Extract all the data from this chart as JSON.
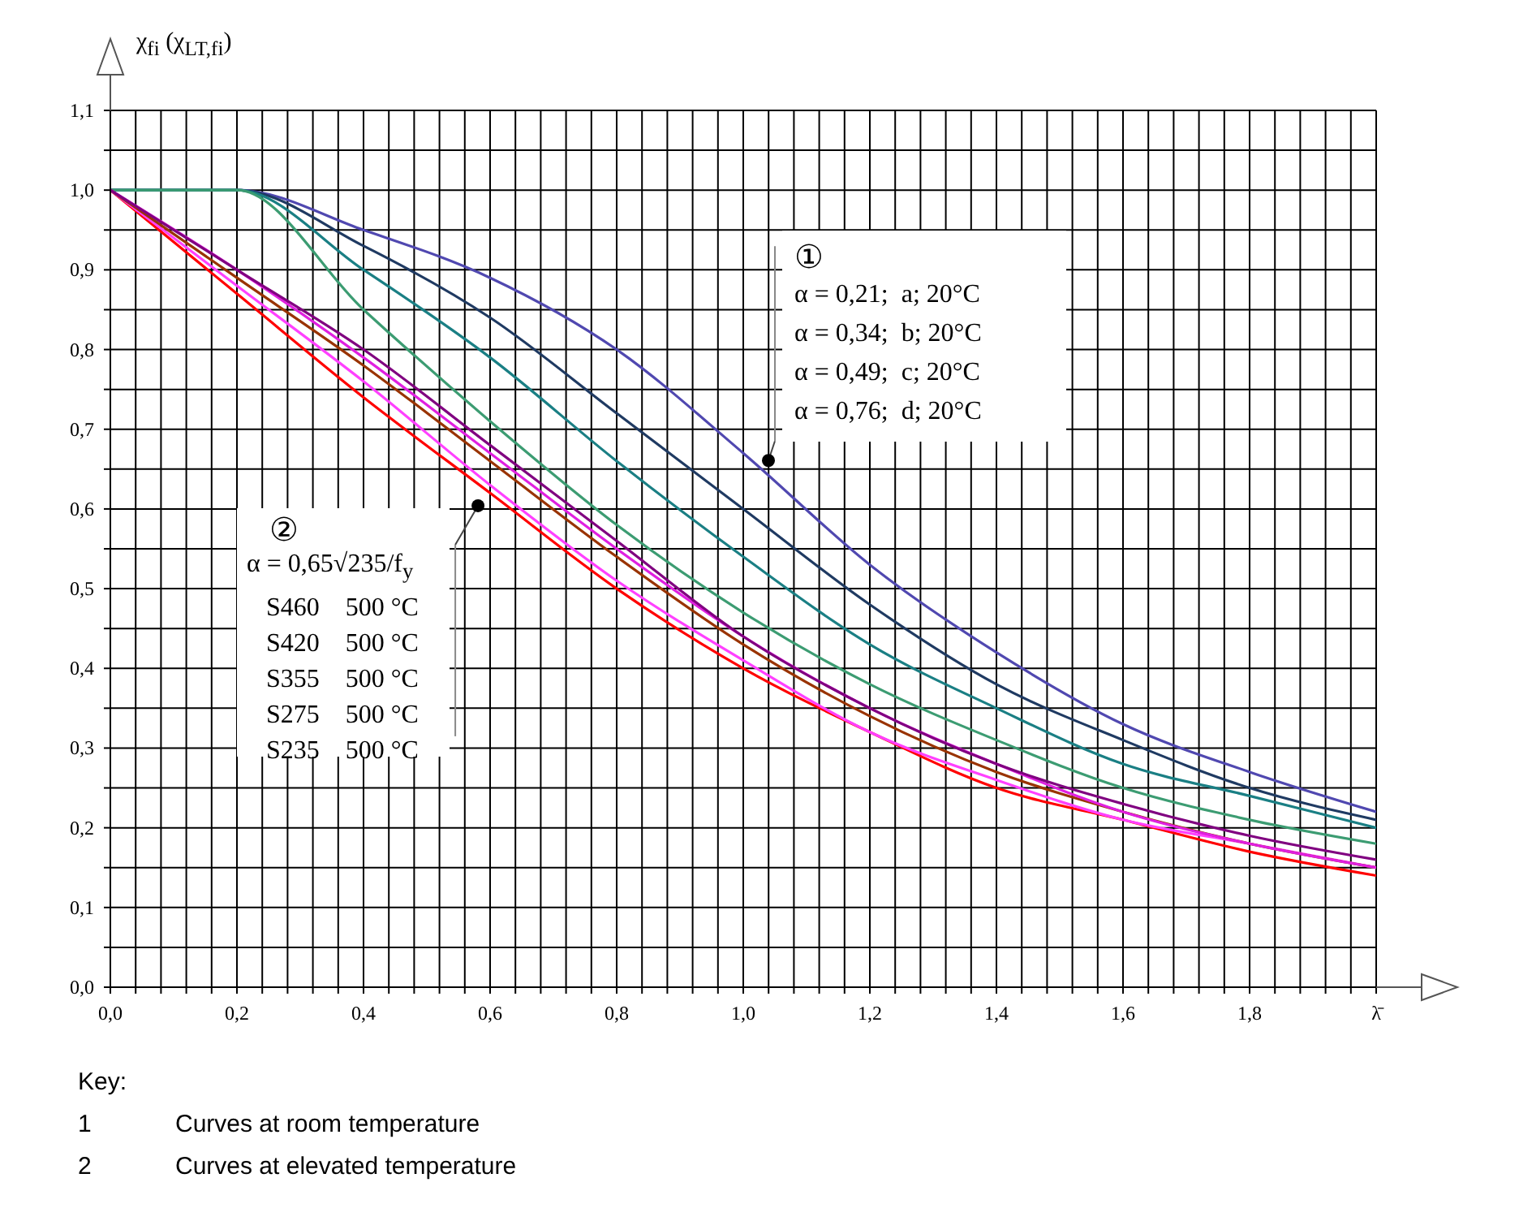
{
  "chart_data": {
    "type": "line",
    "ylabel": "χ$_{fi}$ (χ$_{LT,fi}$)",
    "x": [
      0,
      0.2,
      0.4,
      0.6,
      0.8,
      1.0,
      1.2,
      1.4,
      1.6,
      1.8,
      2.0
    ],
    "series": [
      {
        "color": "#5048b0",
        "values": [
          1,
          1,
          0.95,
          0.89,
          0.8,
          0.67,
          0.53,
          0.42,
          0.33,
          0.27,
          0.22
        ]
      },
      {
        "color": "#1f3a62",
        "values": [
          1,
          1,
          0.93,
          0.84,
          0.72,
          0.6,
          0.48,
          0.38,
          0.31,
          0.25,
          0.21
        ]
      },
      {
        "color": "#1a7f84",
        "values": [
          1,
          1,
          0.9,
          0.79,
          0.66,
          0.54,
          0.43,
          0.35,
          0.28,
          0.24,
          0.2
        ]
      },
      {
        "color": "#3c9c72",
        "values": [
          1,
          1,
          0.85,
          0.71,
          0.58,
          0.47,
          0.38,
          0.31,
          0.25,
          0.21,
          0.18
        ]
      },
      {
        "color": "#ff0000",
        "values": [
          1,
          0.87,
          0.74,
          0.62,
          0.5,
          0.4,
          0.32,
          0.25,
          0.21,
          0.17,
          0.14
        ]
      },
      {
        "color": "#ff40ff",
        "values": [
          1,
          0.88,
          0.76,
          0.63,
          0.51,
          0.41,
          0.32,
          0.26,
          0.21,
          0.18,
          0.15
        ]
      },
      {
        "color": "#993300",
        "values": [
          1,
          0.89,
          0.78,
          0.66,
          0.54,
          0.43,
          0.34,
          0.27,
          0.22,
          0.18,
          0.15
        ]
      },
      {
        "color": "#e020e0",
        "values": [
          1,
          0.9,
          0.79,
          0.67,
          0.55,
          0.44,
          0.35,
          0.28,
          0.22,
          0.18,
          0.15
        ]
      },
      {
        "color": "#800080",
        "values": [
          1,
          0.9,
          0.8,
          0.68,
          0.56,
          0.44,
          0.35,
          0.28,
          0.23,
          0.19,
          0.16
        ]
      }
    ],
    "xlim": [
      0,
      2
    ],
    "xticks": [
      {
        "value": 0,
        "label": "0,0"
      },
      {
        "value": 0.04,
        "label": null
      },
      {
        "value": 0.08,
        "label": null
      },
      {
        "value": 0.12,
        "label": null
      },
      {
        "value": 0.16,
        "label": null
      },
      {
        "value": 0.2,
        "label": "0,2"
      },
      {
        "value": 0.24,
        "label": null
      },
      {
        "value": 0.28,
        "label": null
      },
      {
        "value": 0.32,
        "label": null
      },
      {
        "value": 0.36,
        "label": null
      },
      {
        "value": 0.4,
        "label": "0,4"
      },
      {
        "value": 0.44,
        "label": null
      },
      {
        "value": 0.48,
        "label": null
      },
      {
        "value": 0.52,
        "label": null
      },
      {
        "value": 0.56,
        "label": null
      },
      {
        "value": 0.6,
        "label": "0,6"
      },
      {
        "value": 0.64,
        "label": null
      },
      {
        "value": 0.68,
        "label": null
      },
      {
        "value": 0.72,
        "label": null
      },
      {
        "value": 0.76,
        "label": null
      },
      {
        "value": 0.8,
        "label": "0,8"
      },
      {
        "value": 0.84,
        "label": null
      },
      {
        "value": 0.88,
        "label": null
      },
      {
        "value": 0.92,
        "label": null
      },
      {
        "value": 0.96,
        "label": null
      },
      {
        "value": 1.0,
        "label": "1,0"
      },
      {
        "value": 1.04,
        "label": null
      },
      {
        "value": 1.08,
        "label": null
      },
      {
        "value": 1.12,
        "label": null
      },
      {
        "value": 1.16,
        "label": null
      },
      {
        "value": 1.2,
        "label": "1,2"
      },
      {
        "value": 1.24,
        "label": null
      },
      {
        "value": 1.28,
        "label": null
      },
      {
        "value": 1.32,
        "label": null
      },
      {
        "value": 1.36,
        "label": null
      },
      {
        "value": 1.4,
        "label": "1,4"
      },
      {
        "value": 1.44,
        "label": null
      },
      {
        "value": 1.48,
        "label": null
      },
      {
        "value": 1.52,
        "label": null
      },
      {
        "value": 1.56,
        "label": null
      },
      {
        "value": 1.6,
        "label": "1,6"
      },
      {
        "value": 1.64,
        "label": null
      },
      {
        "value": 1.68,
        "label": null
      },
      {
        "value": 1.72,
        "label": null
      },
      {
        "value": 1.76,
        "label": null
      },
      {
        "value": 1.8,
        "label": "1,8"
      },
      {
        "value": 1.84,
        "label": null
      },
      {
        "value": 1.88,
        "label": null
      },
      {
        "value": 1.92,
        "label": null
      },
      {
        "value": 1.96,
        "label": null
      },
      {
        "value": 2.0,
        "label": "λ̄"
      }
    ],
    "ylim": [
      0,
      1.1
    ],
    "yticks": [
      {
        "value": 0,
        "label": "0,0"
      },
      {
        "value": 0.05,
        "label": null
      },
      {
        "value": 0.1,
        "label": "0,1"
      },
      {
        "value": 0.15,
        "label": null
      },
      {
        "value": 0.2,
        "label": "0,2"
      },
      {
        "value": 0.25,
        "label": null
      },
      {
        "value": 0.3,
        "label": "0,3"
      },
      {
        "value": 0.35,
        "label": null
      },
      {
        "value": 0.4,
        "label": "0,4"
      },
      {
        "value": 0.45,
        "label": null
      },
      {
        "value": 0.5,
        "label": "0,5"
      },
      {
        "value": 0.55,
        "label": null
      },
      {
        "value": 0.6,
        "label": "0,6"
      },
      {
        "value": 0.65,
        "label": null
      },
      {
        "value": 0.7,
        "label": "0,7"
      },
      {
        "value": 0.75,
        "label": null
      },
      {
        "value": 0.8,
        "label": "0,8"
      },
      {
        "value": 0.85,
        "label": null
      },
      {
        "value": 0.9,
        "label": "0,9"
      },
      {
        "value": 0.95,
        "label": null
      },
      {
        "value": 1.0,
        "label": "1,0"
      },
      {
        "value": 1.05,
        "label": null
      },
      {
        "value": 1.1,
        "label": "1,1"
      }
    ],
    "grid": true,
    "annotations": [
      "①",
      "α = 0,21;  a; 20°C",
      "α = 0,34;  b; 20°C",
      "α = 0,49;  c; 20°C",
      "α = 0,76;  d; 20°C",
      "②",
      "α = 0,65√235/f$_{y}$",
      "S460    500 °C",
      "S420    500 °C",
      "S355    500 °C",
      "S275    500 °C",
      "S235    500 °C",
      "Key:",
      "1",
      "Curves at room temperature",
      "2",
      "Curves at elevated temperature"
    ]
  }
}
